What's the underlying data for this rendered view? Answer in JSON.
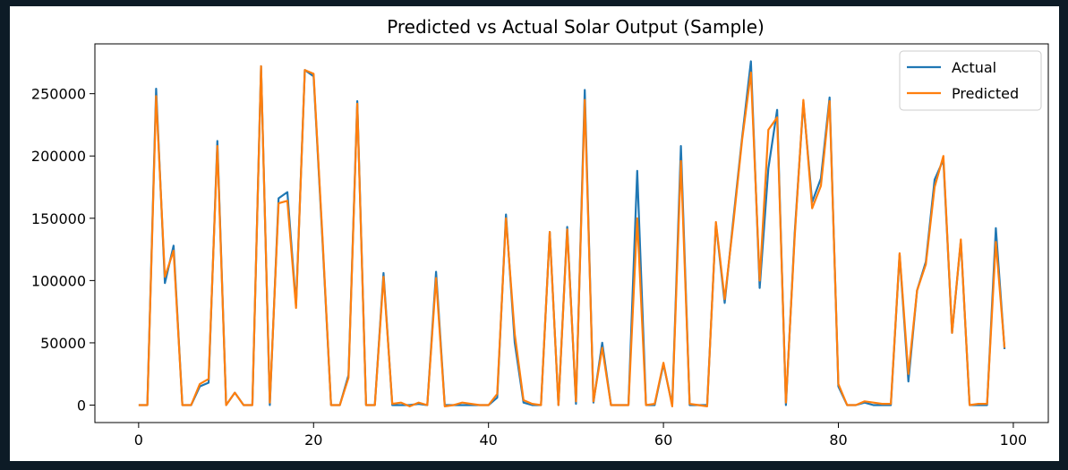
{
  "chart_data": {
    "type": "line",
    "title": "Predicted vs Actual Solar Output (Sample)",
    "xlabel": "",
    "ylabel": "",
    "xlim": [
      -5,
      104
    ],
    "ylim": [
      -14000,
      290000
    ],
    "xticks": [
      0,
      20,
      40,
      60,
      80,
      100
    ],
    "yticks": [
      0,
      50000,
      100000,
      150000,
      200000,
      250000
    ],
    "x": [
      0,
      1,
      2,
      3,
      4,
      5,
      6,
      7,
      8,
      9,
      10,
      11,
      12,
      13,
      14,
      15,
      16,
      17,
      18,
      19,
      20,
      21,
      22,
      23,
      24,
      25,
      26,
      27,
      28,
      29,
      30,
      31,
      32,
      33,
      34,
      35,
      36,
      37,
      38,
      39,
      40,
      41,
      42,
      43,
      44,
      45,
      46,
      47,
      48,
      49,
      50,
      51,
      52,
      53,
      54,
      55,
      56,
      57,
      58,
      59,
      60,
      61,
      62,
      63,
      64,
      65,
      66,
      67,
      68,
      69,
      70,
      71,
      72,
      73,
      74,
      75,
      76,
      77,
      78,
      79,
      80,
      81,
      82,
      83,
      84,
      85,
      86,
      87,
      88,
      89,
      90,
      91,
      92,
      93,
      94,
      95,
      96,
      97,
      98,
      99
    ],
    "legend": {
      "position": "upper right"
    },
    "series": [
      {
        "name": "Actual",
        "color": "#1f77b4",
        "values": [
          0,
          0,
          254000,
          98000,
          128000,
          0,
          0,
          15000,
          18000,
          212000,
          0,
          10000,
          0,
          0,
          272000,
          0,
          166000,
          171000,
          80000,
          269000,
          264000,
          135000,
          0,
          0,
          24000,
          244000,
          0,
          0,
          106000,
          0,
          0,
          0,
          1000,
          0,
          107000,
          0,
          0,
          0,
          0,
          0,
          0,
          6000,
          153000,
          50000,
          2000,
          0,
          0,
          139000,
          0,
          143000,
          1000,
          253000,
          2000,
          50000,
          0,
          0,
          0,
          188000,
          0,
          0,
          33000,
          0,
          208000,
          0,
          0,
          0,
          146000,
          82000,
          150000,
          215000,
          276000,
          94000,
          190000,
          237000,
          0,
          138000,
          243000,
          163000,
          182000,
          247000,
          15000,
          0,
          0,
          2000,
          0,
          0,
          0,
          121000,
          19000,
          92000,
          115000,
          181000,
          197000,
          58000,
          132000,
          0,
          0,
          0,
          142000,
          45000
        ]
      },
      {
        "name": "Predicted",
        "color": "#ff7f0e",
        "values": [
          0,
          0,
          248000,
          103000,
          124000,
          0,
          0,
          17000,
          21000,
          208000,
          0,
          10000,
          0,
          0,
          272000,
          2000,
          162000,
          164000,
          78000,
          269000,
          266000,
          138000,
          0,
          0,
          22000,
          242000,
          0,
          0,
          103000,
          1000,
          2000,
          -1000,
          2000,
          0,
          102000,
          -1000,
          0,
          2000,
          1000,
          0,
          0,
          9000,
          150000,
          57000,
          4000,
          1000,
          0,
          139000,
          0,
          141000,
          3000,
          245000,
          3000,
          46000,
          0,
          0,
          0,
          150000,
          0,
          1000,
          34000,
          -1000,
          196000,
          1000,
          0,
          -1000,
          147000,
          85000,
          147000,
          213000,
          267000,
          100000,
          221000,
          231000,
          2000,
          135000,
          245000,
          158000,
          176000,
          244000,
          17000,
          0,
          0,
          3000,
          2000,
          1000,
          1000,
          122000,
          25000,
          92000,
          113000,
          175000,
          200000,
          58000,
          133000,
          0,
          1000,
          1000,
          131000,
          46000
        ]
      }
    ]
  }
}
